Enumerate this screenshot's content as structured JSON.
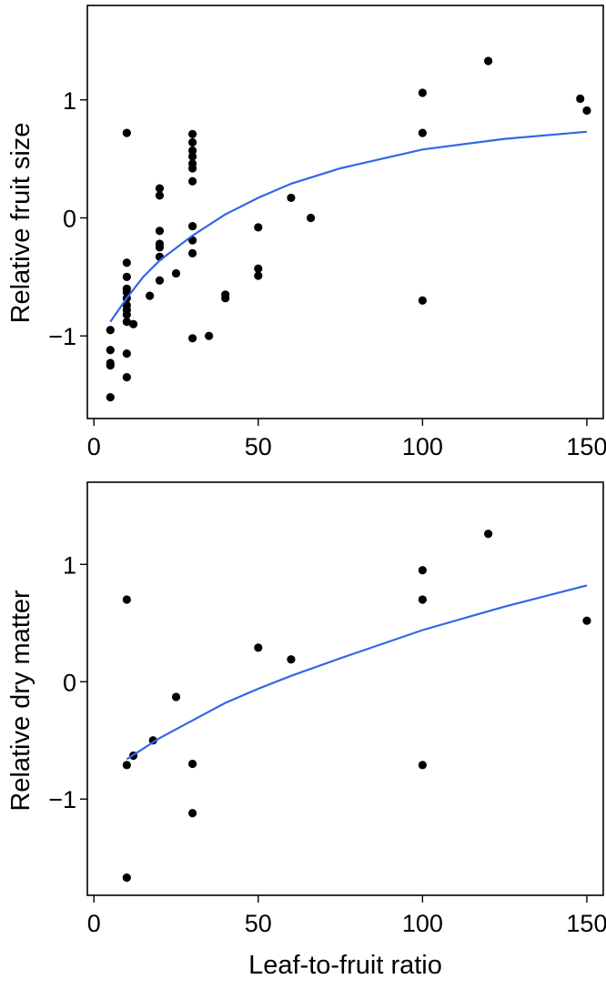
{
  "chart_data": [
    {
      "type": "scatter",
      "title": "",
      "xlabel": "",
      "ylabel": "Relative fruit size",
      "xlim": [
        -2,
        155
      ],
      "ylim": [
        -1.7,
        1.8
      ],
      "xticks": [
        0,
        50,
        100,
        150
      ],
      "yticks": [
        1,
        0,
        -1
      ],
      "ytick_labels": [
        "1",
        "0",
        "−1"
      ],
      "grid": false,
      "legend": "none",
      "point_color": "#000000",
      "fit_color": "#3366e6",
      "points": [
        [
          5,
          -0.95
        ],
        [
          5,
          -1.12
        ],
        [
          5,
          -1.23
        ],
        [
          5,
          -1.25
        ],
        [
          5,
          -1.52
        ],
        [
          10,
          0.72
        ],
        [
          10,
          -0.38
        ],
        [
          10,
          -0.5
        ],
        [
          10,
          -0.6
        ],
        [
          10,
          -0.63
        ],
        [
          10,
          -0.68
        ],
        [
          10,
          -0.74
        ],
        [
          10,
          -0.78
        ],
        [
          10,
          -0.82
        ],
        [
          10,
          -0.88
        ],
        [
          10,
          -1.15
        ],
        [
          10,
          -1.35
        ],
        [
          12,
          -0.9
        ],
        [
          17,
          -0.66
        ],
        [
          20,
          0.25
        ],
        [
          20,
          0.19
        ],
        [
          20,
          -0.11
        ],
        [
          20,
          -0.22
        ],
        [
          20,
          -0.25
        ],
        [
          20,
          -0.33
        ],
        [
          20,
          -0.53
        ],
        [
          25,
          -0.47
        ],
        [
          30,
          0.71
        ],
        [
          30,
          0.64
        ],
        [
          30,
          0.57
        ],
        [
          30,
          0.52
        ],
        [
          30,
          0.46
        ],
        [
          30,
          0.42
        ],
        [
          30,
          0.31
        ],
        [
          30,
          -0.07
        ],
        [
          30,
          -0.19
        ],
        [
          30,
          -0.3
        ],
        [
          30,
          -1.02
        ],
        [
          35,
          -1.0
        ],
        [
          40,
          -0.65
        ],
        [
          40,
          -0.68
        ],
        [
          50,
          -0.08
        ],
        [
          50,
          -0.43
        ],
        [
          50,
          -0.49
        ],
        [
          60,
          0.17
        ],
        [
          66,
          0.0
        ],
        [
          100,
          1.06
        ],
        [
          100,
          0.72
        ],
        [
          100,
          -0.7
        ],
        [
          120,
          1.33
        ],
        [
          148,
          1.01
        ],
        [
          150,
          0.91
        ]
      ],
      "fit": {
        "x": [
          5,
          10,
          15,
          20,
          30,
          40,
          50,
          60,
          75,
          100,
          125,
          150
        ],
        "y": [
          -0.88,
          -0.68,
          -0.5,
          -0.36,
          -0.15,
          0.03,
          0.17,
          0.29,
          0.42,
          0.58,
          0.67,
          0.73
        ]
      }
    },
    {
      "type": "scatter",
      "title": "",
      "xlabel": "Leaf-to-fruit ratio",
      "ylabel": "Relative dry matter",
      "xlim": [
        -2,
        155
      ],
      "ylim": [
        -1.82,
        1.7
      ],
      "xticks": [
        0,
        50,
        100,
        150
      ],
      "yticks": [
        1,
        0,
        -1
      ],
      "ytick_labels": [
        "1",
        "0",
        "−1"
      ],
      "grid": false,
      "legend": "none",
      "point_color": "#000000",
      "fit_color": "#3366e6",
      "points": [
        [
          10,
          0.7
        ],
        [
          10,
          -0.71
        ],
        [
          10,
          -1.67
        ],
        [
          12,
          -0.63
        ],
        [
          18,
          -0.5
        ],
        [
          25,
          -0.13
        ],
        [
          30,
          -0.7
        ],
        [
          30,
          -1.12
        ],
        [
          50,
          0.29
        ],
        [
          60,
          0.19
        ],
        [
          100,
          0.95
        ],
        [
          100,
          0.7
        ],
        [
          100,
          -0.71
        ],
        [
          120,
          1.26
        ],
        [
          150,
          0.52
        ]
      ],
      "fit": {
        "x": [
          10,
          20,
          30,
          40,
          50,
          60,
          75,
          100,
          125,
          150
        ],
        "y": [
          -0.66,
          -0.48,
          -0.33,
          -0.18,
          -0.06,
          0.05,
          0.2,
          0.44,
          0.64,
          0.82
        ]
      }
    }
  ]
}
